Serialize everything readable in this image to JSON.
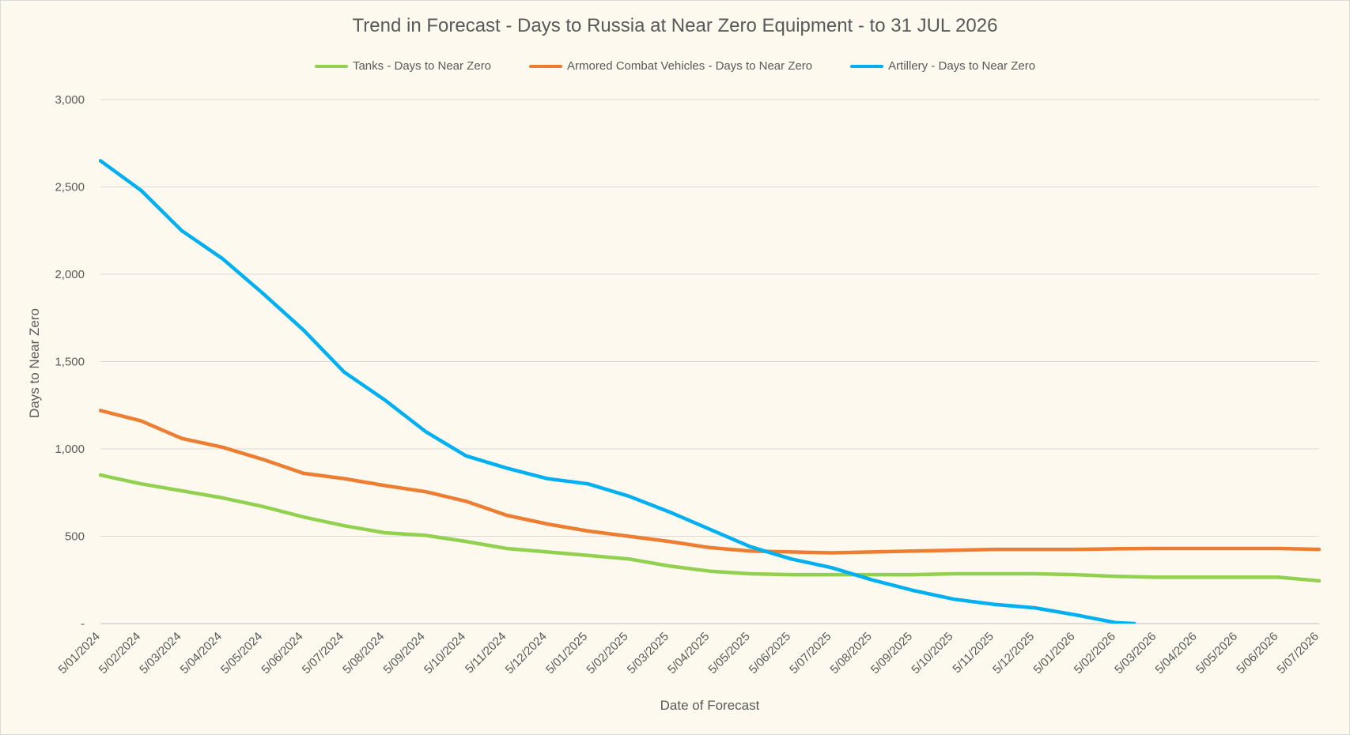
{
  "chart_data": {
    "type": "line",
    "title": "Trend in Forecast - Days to Russia at Near Zero Equipment - to 31 JUL 2026",
    "xlabel": "Date of Forecast",
    "ylabel": "Days to Near Zero",
    "ylim": [
      0,
      3000
    ],
    "yticks": [
      0,
      500,
      1000,
      1500,
      2000,
      2500,
      3000
    ],
    "ytick_labels": [
      "-",
      "500",
      "1,000",
      "1,500",
      "2,000",
      "2,500",
      "3,000"
    ],
    "grid": true,
    "legend_position": "top",
    "categories": [
      "5/01/2024",
      "5/02/2024",
      "5/03/2024",
      "5/04/2024",
      "5/05/2024",
      "5/06/2024",
      "5/07/2024",
      "5/08/2024",
      "5/09/2024",
      "5/10/2024",
      "5/11/2024",
      "5/12/2024",
      "5/01/2025",
      "5/02/2025",
      "5/03/2025",
      "5/04/2025",
      "5/05/2025",
      "5/06/2025",
      "5/07/2025",
      "5/08/2025",
      "5/09/2025",
      "5/10/2025",
      "5/11/2025",
      "5/12/2025",
      "5/01/2026",
      "5/02/2026",
      "5/03/2026",
      "5/04/2026",
      "5/05/2026",
      "5/06/2026",
      "5/07/2026"
    ],
    "series": [
      {
        "name": "Tanks - Days to Near Zero",
        "color": "#92d050",
        "values": [
          850,
          800,
          760,
          720,
          670,
          610,
          560,
          520,
          505,
          470,
          430,
          410,
          390,
          370,
          330,
          300,
          285,
          280,
          280,
          280,
          280,
          285,
          285,
          285,
          280,
          270,
          265,
          265,
          265,
          265,
          245
        ]
      },
      {
        "name": "Armored Combat Vehicles - Days to Near Zero",
        "color": "#ed7d31",
        "values": [
          1220,
          1160,
          1060,
          1010,
          940,
          860,
          830,
          790,
          755,
          700,
          620,
          570,
          530,
          500,
          470,
          435,
          415,
          410,
          405,
          410,
          415,
          420,
          425,
          425,
          425,
          428,
          430,
          430,
          430,
          430,
          425
        ]
      },
      {
        "name": "Artillery - Days to Near Zero",
        "color": "#00b0f0",
        "values": [
          2650,
          2480,
          2250,
          2090,
          1890,
          1680,
          1440,
          1280,
          1100,
          960,
          890,
          830,
          800,
          730,
          640,
          540,
          440,
          370,
          320,
          250,
          190,
          140,
          110,
          90,
          50,
          5,
          null,
          null,
          null,
          null,
          null
        ]
      }
    ]
  }
}
